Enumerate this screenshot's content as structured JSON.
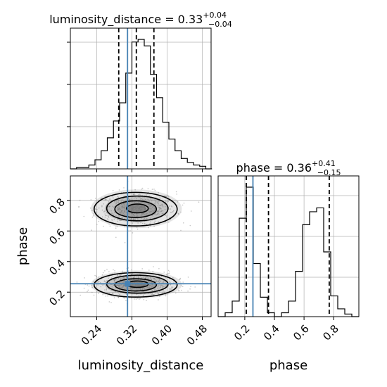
{
  "chart_data": {
    "type": "corner",
    "parameters": [
      "luminosity_distance",
      "phase"
    ],
    "truths": {
      "luminosity_distance": 0.31,
      "phase": 0.255
    },
    "grid": true,
    "panels": [
      {
        "id": "hist_luminosity_distance",
        "type": "histogram",
        "title": {
          "base": "luminosity_distance = 0.33",
          "sup": "+0.04",
          "sub": "−0.04"
        },
        "bin_edges": [
          0.18,
          0.194,
          0.208,
          0.222,
          0.236,
          0.25,
          0.264,
          0.278,
          0.292,
          0.306,
          0.32,
          0.334,
          0.348,
          0.362,
          0.376,
          0.39,
          0.404,
          0.418,
          0.432,
          0.446,
          0.46,
          0.474,
          0.488,
          0.502
        ],
        "counts": [
          0,
          1,
          1,
          3,
          7,
          14,
          24,
          37,
          51,
          74,
          98,
          100,
          95,
          73,
          55,
          36,
          23,
          14,
          8,
          5,
          3,
          2,
          0
        ],
        "quantile_lines": [
          0.29,
          0.33,
          0.37
        ],
        "truth": 0.31,
        "xlim": [
          0.18,
          0.5
        ]
      },
      {
        "id": "hist_phase",
        "type": "histogram",
        "title": {
          "base": "phase = 0.36",
          "sup": "+0.41",
          "sub": "−0.15"
        },
        "bin_edges": [
          0.02,
          0.0675,
          0.115,
          0.1625,
          0.21,
          0.2575,
          0.305,
          0.3525,
          0.4,
          0.4475,
          0.495,
          0.5425,
          0.59,
          0.6375,
          0.685,
          0.7325,
          0.78,
          0.8275,
          0.875,
          0.9225,
          0.97
        ],
        "counts": [
          0,
          3,
          12,
          76,
          100,
          41,
          15,
          3,
          0,
          3,
          12,
          35,
          71,
          81,
          84,
          50,
          16,
          6,
          2,
          0
        ],
        "quantile_lines": [
          0.21,
          0.36,
          0.77
        ],
        "truth": 0.255,
        "xlim": [
          0.02,
          0.97
        ]
      },
      {
        "id": "joint_luminosity_distance_phase",
        "type": "2d-density",
        "x": "luminosity_distance",
        "y": "phase",
        "xlim": [
          0.18,
          0.5
        ],
        "ylim": [
          0.04,
          0.96
        ],
        "modes": [
          {
            "x": 0.33,
            "y": 0.745,
            "sx": 0.045,
            "sy": 0.055
          },
          {
            "x": 0.33,
            "y": 0.25,
            "sx": 0.045,
            "sy": 0.04
          }
        ],
        "truth": {
          "x": 0.31,
          "y": 0.255
        }
      }
    ],
    "axes": {
      "x_ticks_luminosity_distance": [
        0.24,
        0.32,
        0.4,
        0.48
      ],
      "x_tick_labels_luminosity_distance": [
        "0.24",
        "0.32",
        "0.40",
        "0.48"
      ],
      "y_ticks_phase": [
        0.2,
        0.4,
        0.6,
        0.8
      ],
      "y_tick_labels_phase": [
        "0.2",
        "0.4",
        "0.6",
        "0.8"
      ],
      "x_ticks_phase": [
        0.2,
        0.4,
        0.6,
        0.8
      ],
      "x_tick_labels_phase": [
        "0.2",
        "0.4",
        "0.6",
        "0.8"
      ],
      "xlabel_joint": "luminosity_distance",
      "ylabel_joint": "phase",
      "xlabel_phase": "phase"
    },
    "colors": {
      "truth": "#4682b4",
      "line": "#000000",
      "density": "#808080",
      "grid": "#b0b0b0"
    }
  }
}
